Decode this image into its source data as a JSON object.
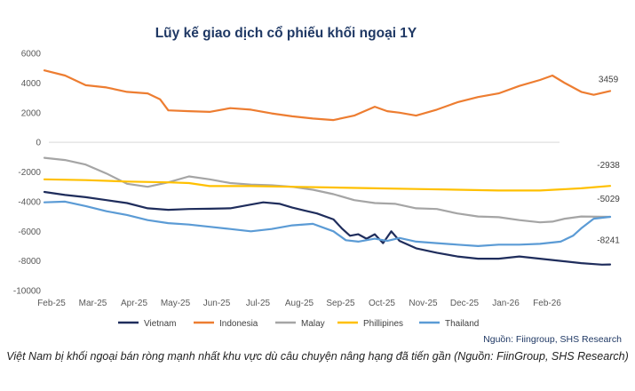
{
  "chart_data": {
    "type": "line",
    "title": "Lũy kế giao dịch cổ phiếu khối ngoại 1Y",
    "xlabel": "",
    "ylabel": "",
    "x_ticks": [
      "Feb-25",
      "Mar-25",
      "Apr-25",
      "May-25",
      "Jun-25",
      "Jul-25",
      "Aug-25",
      "Sep-25",
      "Oct-25",
      "Nov-25",
      "Dec-25",
      "Jan-26",
      "Feb-26"
    ],
    "y_ticks": [
      6000,
      4000,
      2000,
      0,
      -2000,
      -4000,
      -6000,
      -8000,
      -10000
    ],
    "ylim": [
      -10000,
      6000
    ],
    "x_range_months": [
      0,
      13.7
    ],
    "grid": false,
    "legend_position": "bottom",
    "series": [
      {
        "name": "Vietnam",
        "color": "#1f2d5c",
        "points": [
          [
            0,
            -3350
          ],
          [
            0.5,
            -3550
          ],
          [
            1,
            -3700
          ],
          [
            1.5,
            -3900
          ],
          [
            2,
            -4100
          ],
          [
            2.5,
            -4450
          ],
          [
            3,
            -4550
          ],
          [
            3.5,
            -4500
          ],
          [
            4,
            -4480
          ],
          [
            4.5,
            -4450
          ],
          [
            5,
            -4200
          ],
          [
            5.3,
            -4050
          ],
          [
            5.7,
            -4150
          ],
          [
            6,
            -4400
          ],
          [
            6.3,
            -4600
          ],
          [
            6.6,
            -4800
          ],
          [
            7,
            -5200
          ],
          [
            7.2,
            -5800
          ],
          [
            7.4,
            -6300
          ],
          [
            7.6,
            -6200
          ],
          [
            7.8,
            -6500
          ],
          [
            8,
            -6200
          ],
          [
            8.2,
            -6800
          ],
          [
            8.4,
            -6000
          ],
          [
            8.6,
            -6650
          ],
          [
            9,
            -7150
          ],
          [
            9.5,
            -7450
          ],
          [
            10,
            -7700
          ],
          [
            10.5,
            -7850
          ],
          [
            11,
            -7850
          ],
          [
            11.5,
            -7700
          ],
          [
            12,
            -7850
          ],
          [
            12.5,
            -8000
          ],
          [
            13,
            -8150
          ],
          [
            13.5,
            -8250
          ],
          [
            13.7,
            -8241
          ]
        ]
      },
      {
        "name": "Indonesia",
        "color": "#ed7d31",
        "points": [
          [
            0,
            4850
          ],
          [
            0.5,
            4500
          ],
          [
            1,
            3850
          ],
          [
            1.5,
            3700
          ],
          [
            2,
            3400
          ],
          [
            2.5,
            3300
          ],
          [
            2.8,
            2900
          ],
          [
            3,
            2150
          ],
          [
            3.5,
            2100
          ],
          [
            4,
            2050
          ],
          [
            4.5,
            2300
          ],
          [
            5,
            2200
          ],
          [
            5.5,
            1950
          ],
          [
            6,
            1750
          ],
          [
            6.5,
            1600
          ],
          [
            7,
            1500
          ],
          [
            7.5,
            1800
          ],
          [
            8,
            2400
          ],
          [
            8.3,
            2100
          ],
          [
            8.6,
            2000
          ],
          [
            9,
            1800
          ],
          [
            9.5,
            2200
          ],
          [
            10,
            2700
          ],
          [
            10.5,
            3050
          ],
          [
            11,
            3300
          ],
          [
            11.5,
            3800
          ],
          [
            12,
            4200
          ],
          [
            12.3,
            4500
          ],
          [
            12.6,
            4000
          ],
          [
            13,
            3400
          ],
          [
            13.3,
            3200
          ],
          [
            13.7,
            3459
          ]
        ]
      },
      {
        "name": "Malay",
        "color": "#a5a5a5",
        "points": [
          [
            0,
            -1050
          ],
          [
            0.5,
            -1200
          ],
          [
            1,
            -1500
          ],
          [
            1.5,
            -2100
          ],
          [
            2,
            -2800
          ],
          [
            2.5,
            -3000
          ],
          [
            3,
            -2700
          ],
          [
            3.5,
            -2300
          ],
          [
            4,
            -2500
          ],
          [
            4.5,
            -2750
          ],
          [
            5,
            -2850
          ],
          [
            5.5,
            -2900
          ],
          [
            6,
            -3000
          ],
          [
            6.5,
            -3200
          ],
          [
            7,
            -3500
          ],
          [
            7.5,
            -3900
          ],
          [
            8,
            -4100
          ],
          [
            8.5,
            -4150
          ],
          [
            9,
            -4450
          ],
          [
            9.5,
            -4500
          ],
          [
            10,
            -4800
          ],
          [
            10.5,
            -5000
          ],
          [
            11,
            -5050
          ],
          [
            11.5,
            -5250
          ],
          [
            12,
            -5400
          ],
          [
            12.3,
            -5350
          ],
          [
            12.6,
            -5150
          ],
          [
            13,
            -5000
          ],
          [
            13.4,
            -5020
          ],
          [
            13.7,
            -5029
          ]
        ]
      },
      {
        "name": "Phillipines",
        "color": "#ffc000",
        "points": [
          [
            0,
            -2500
          ],
          [
            1,
            -2550
          ],
          [
            2,
            -2650
          ],
          [
            3,
            -2700
          ],
          [
            3.5,
            -2750
          ],
          [
            4,
            -2950
          ],
          [
            5,
            -2950
          ],
          [
            6,
            -3000
          ],
          [
            7,
            -3050
          ],
          [
            8,
            -3100
          ],
          [
            9,
            -3150
          ],
          [
            10,
            -3200
          ],
          [
            11,
            -3250
          ],
          [
            12,
            -3250
          ],
          [
            13,
            -3100
          ],
          [
            13.7,
            -2938
          ]
        ]
      },
      {
        "name": "Thailand",
        "color": "#5b9bd5",
        "points": [
          [
            0,
            -4050
          ],
          [
            0.5,
            -4000
          ],
          [
            1,
            -4300
          ],
          [
            1.5,
            -4650
          ],
          [
            2,
            -4900
          ],
          [
            2.5,
            -5250
          ],
          [
            3,
            -5450
          ],
          [
            3.5,
            -5550
          ],
          [
            4,
            -5700
          ],
          [
            4.5,
            -5850
          ],
          [
            5,
            -6000
          ],
          [
            5.5,
            -5850
          ],
          [
            6,
            -5600
          ],
          [
            6.5,
            -5500
          ],
          [
            7,
            -6000
          ],
          [
            7.3,
            -6600
          ],
          [
            7.6,
            -6700
          ],
          [
            8,
            -6500
          ],
          [
            8.3,
            -6650
          ],
          [
            8.6,
            -6450
          ],
          [
            9,
            -6700
          ],
          [
            9.5,
            -6800
          ],
          [
            10,
            -6900
          ],
          [
            10.5,
            -7000
          ],
          [
            11,
            -6900
          ],
          [
            11.5,
            -6900
          ],
          [
            12,
            -6850
          ],
          [
            12.5,
            -6700
          ],
          [
            12.8,
            -6300
          ],
          [
            13,
            -5800
          ],
          [
            13.3,
            -5150
          ],
          [
            13.7,
            -5029
          ]
        ]
      }
    ],
    "end_labels": [
      {
        "series": "Indonesia",
        "text": "3459"
      },
      {
        "series": "Phillipines",
        "text": "-2938"
      },
      {
        "series": "Malay",
        "text": "-5029"
      },
      {
        "series": "Vietnam",
        "text": "-8241"
      }
    ]
  },
  "source_note": "Nguồn: Fiingroup, SHS Research",
  "caption": "Việt Nam bị khối ngoại bán ròng mạnh nhất khu vực dù câu chuyện nâng hạng đã tiến gần (Nguồn: FiinGroup, SHS Research)"
}
